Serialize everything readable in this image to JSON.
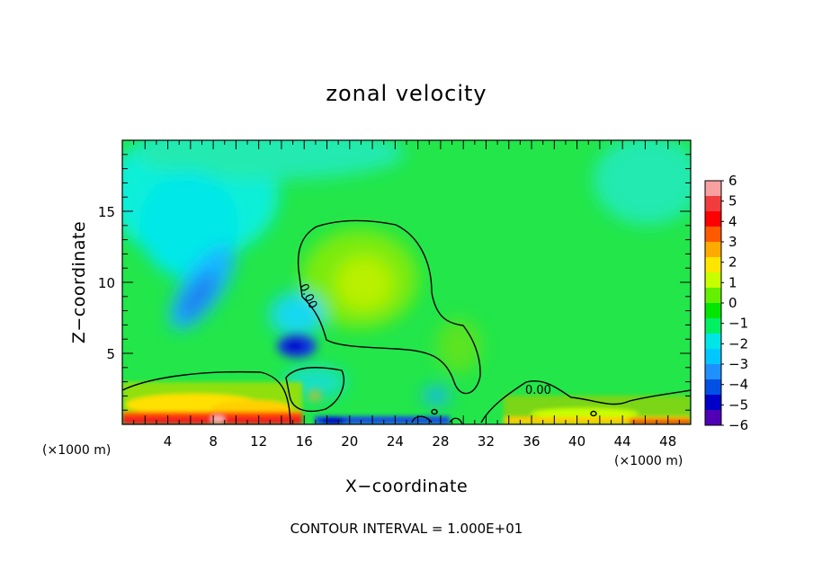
{
  "chart_data": {
    "type": "heatmap",
    "title": "zonal velocity",
    "xlabel": "X−coordinate",
    "ylabel": "Z−coordinate",
    "x_unit_left": "(×1000 m)",
    "x_unit_right": "(×1000 m)",
    "xlim": [
      0,
      50
    ],
    "ylim": [
      0,
      20
    ],
    "xticks": [
      4,
      8,
      12,
      16,
      20,
      24,
      28,
      32,
      36,
      40,
      44,
      48
    ],
    "yticks": [
      5,
      10,
      15
    ],
    "colorbar": {
      "ticks": [
        6,
        5,
        4,
        3,
        2,
        1,
        0,
        -1,
        -2,
        -3,
        -4,
        -5,
        -6
      ],
      "colors": [
        "#f8a0a0",
        "#f03c3c",
        "#ff0000",
        "#ff5a00",
        "#ffaa00",
        "#ffe600",
        "#c8ff00",
        "#64f000",
        "#00e600",
        "#00f064",
        "#00e6e6",
        "#00c8ff",
        "#1e90ff",
        "#0050e6",
        "#0000c8",
        "#5000b4"
      ]
    },
    "contour_labels": [
      {
        "text": "0.00",
        "x": 16.5,
        "y": 9.2
      },
      {
        "text": "0.00",
        "x": 37.2,
        "y": 2.8
      }
    ],
    "contour_interval_text": "CONTOUR INTERVAL = 1.000E+01"
  }
}
